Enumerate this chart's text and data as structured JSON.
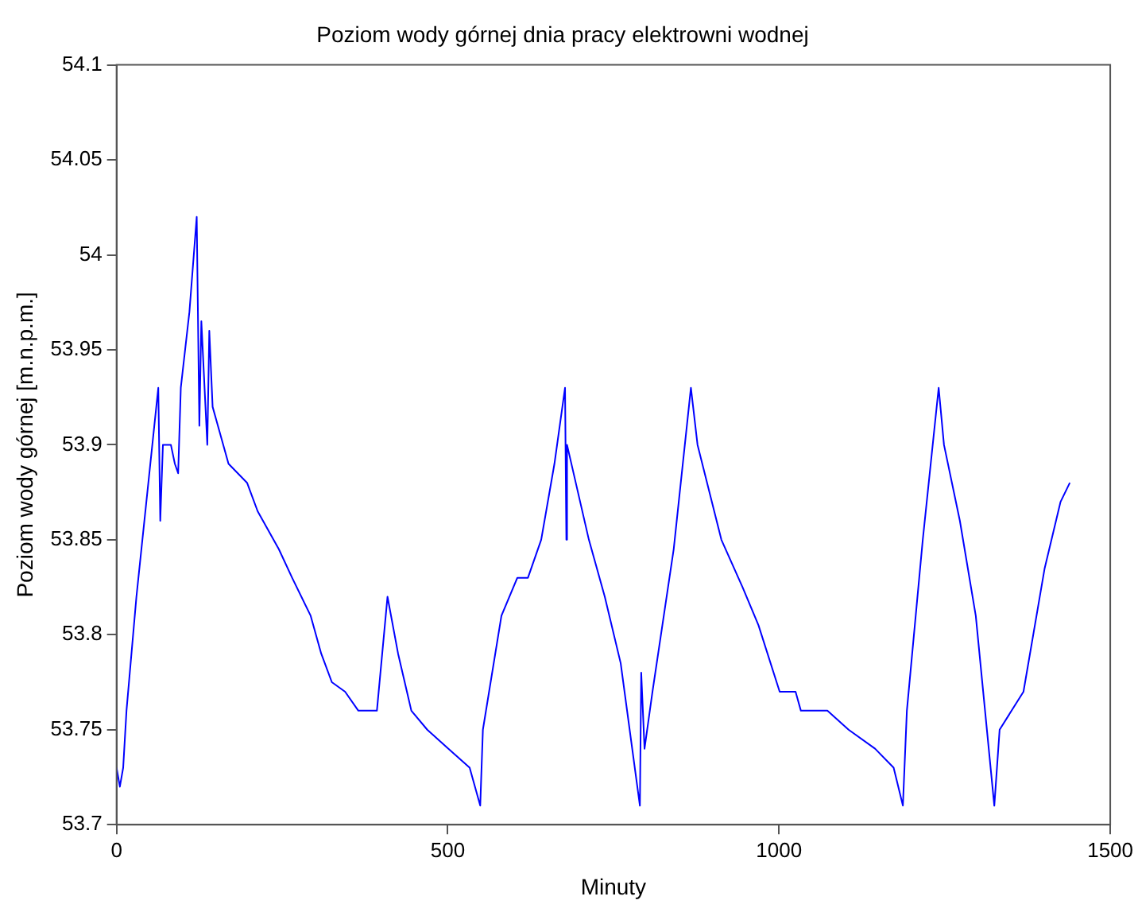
{
  "chart_data": {
    "type": "line",
    "title": "Poziom wody górnej dnia pracy elektrowni wodnej",
    "xlabel": "Minuty",
    "ylabel": "Poziom wody górnej [m.n.p.m.]",
    "xlim": [
      0,
      1500
    ],
    "xticks": [
      0,
      500,
      1000,
      1500
    ],
    "ylim": [
      53.7,
      54.1
    ],
    "yticks": [
      53.7,
      53.75,
      53.8,
      53.85,
      53.9,
      53.95,
      54,
      54.05,
      54.1
    ],
    "grid": false,
    "legend": false,
    "marker": "none",
    "line_style": "solid",
    "series": [
      {
        "color": "#0000ff",
        "x": [
          0,
          5,
          10,
          15,
          30,
          45,
          63,
          66,
          70,
          82,
          88,
          93,
          97,
          110,
          121,
          125,
          128,
          137,
          140,
          145,
          153,
          169,
          197,
          213,
          245,
          265,
          293,
          309,
          325,
          345,
          365,
          393,
          409,
          425,
          445,
          469,
          501,
          533,
          549,
          553,
          581,
          605,
          621,
          641,
          661,
          677,
          679,
          680,
          713,
          737,
          761,
          790,
          792,
          797,
          809,
          841,
          867,
          877,
          913,
          945,
          969,
          1001,
          1025,
          1033,
          1073,
          1105,
          1145,
          1173,
          1187,
          1193,
          1217,
          1241,
          1249,
          1273,
          1297,
          1325,
          1333,
          1369,
          1401,
          1425,
          1439
        ],
        "values": [
          53.73,
          53.72,
          53.73,
          53.76,
          53.82,
          53.87,
          53.93,
          53.86,
          53.9,
          53.9,
          53.89,
          53.885,
          53.93,
          53.97,
          54.02,
          53.91,
          53.965,
          53.9,
          53.96,
          53.92,
          53.91,
          53.89,
          53.88,
          53.865,
          53.845,
          53.83,
          53.81,
          53.79,
          53.775,
          53.77,
          53.76,
          53.76,
          53.82,
          53.79,
          53.76,
          53.75,
          53.74,
          53.73,
          53.71,
          53.75,
          53.81,
          53.83,
          53.83,
          53.85,
          53.89,
          53.93,
          53.85,
          53.9,
          53.85,
          53.82,
          53.785,
          53.71,
          53.78,
          53.74,
          53.77,
          53.845,
          53.93,
          53.9,
          53.85,
          53.825,
          53.805,
          53.77,
          53.77,
          53.76,
          53.76,
          53.75,
          53.74,
          53.73,
          53.71,
          53.76,
          53.85,
          53.93,
          53.9,
          53.86,
          53.81,
          53.71,
          53.75,
          53.77,
          53.835,
          53.87,
          53.88
        ]
      }
    ]
  }
}
